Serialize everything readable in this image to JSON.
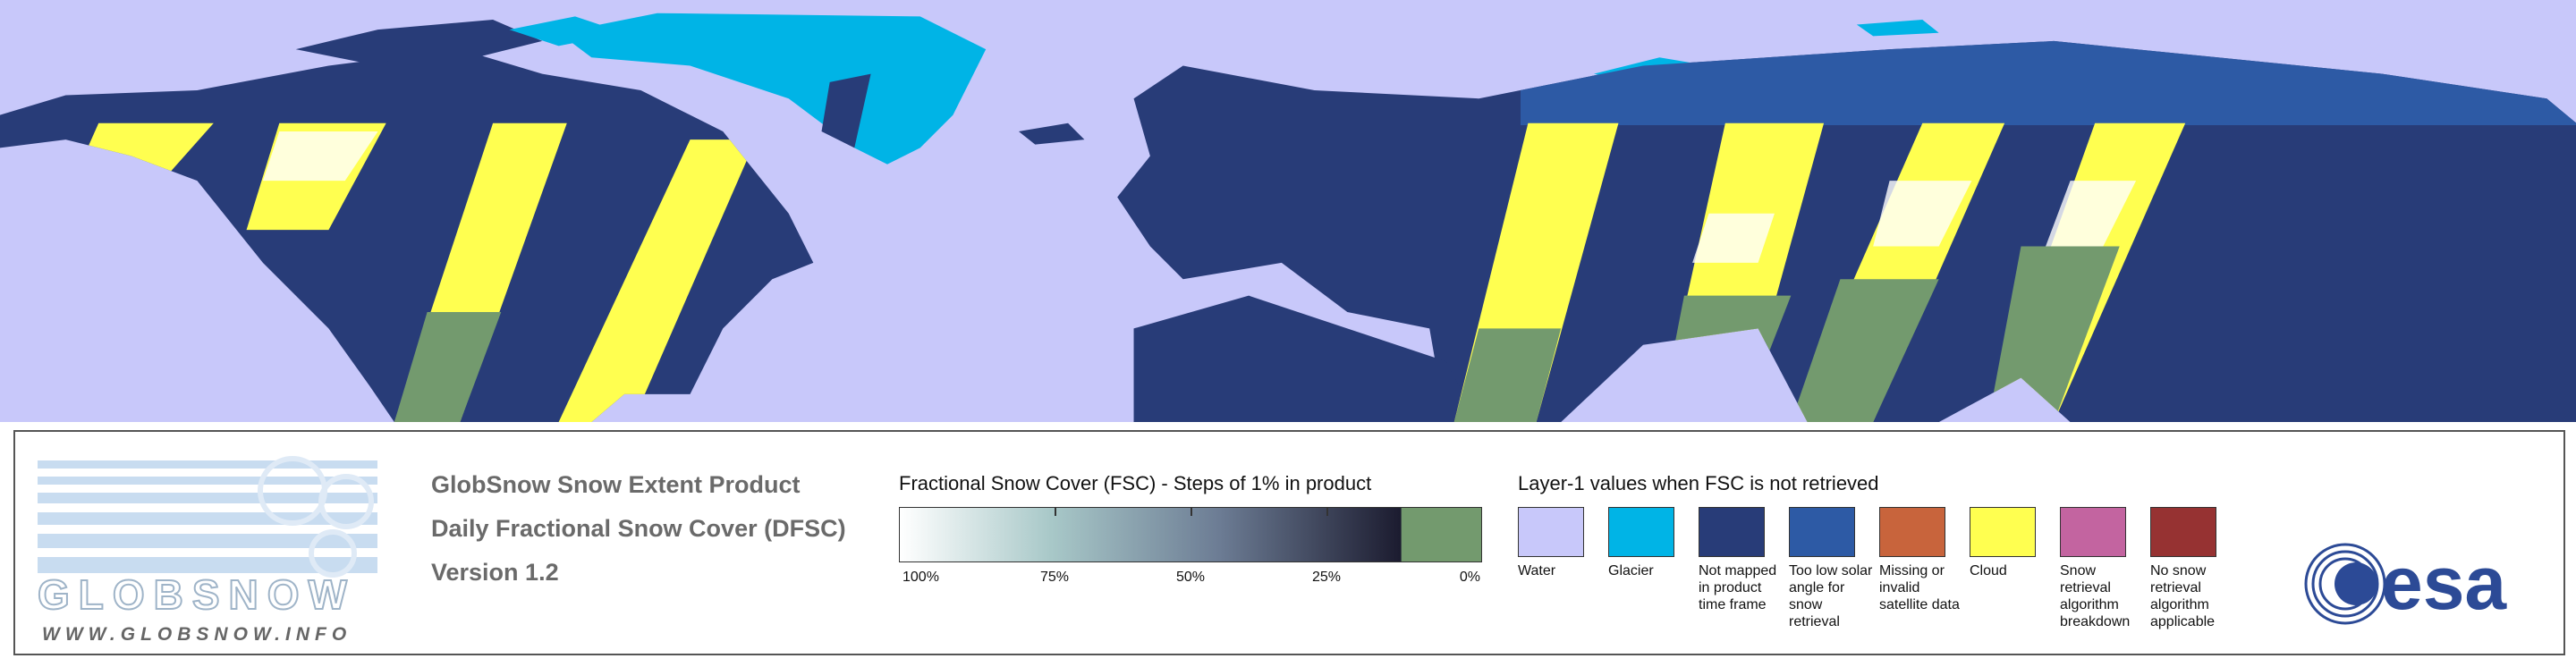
{
  "logo": {
    "name": "GLOBSNOW",
    "url": "WWW.GLOBSNOW.INFO"
  },
  "product": {
    "title": "GlobSnow Snow Extent Product",
    "subtitle": "Daily Fractional Snow Cover (DFSC)",
    "version": "Version 1.2"
  },
  "colorbar": {
    "title": "Fractional Snow Cover (FSC) - Steps of 1% in product",
    "ticks": [
      "100%",
      "75%",
      "50%",
      "25%",
      "0%"
    ]
  },
  "layer1": {
    "title": "Layer-1 values when FSC is not retrieved",
    "classes": [
      {
        "label": "Water",
        "color": "#c8c8fa"
      },
      {
        "label": "Glacier",
        "color": "#00b4e6"
      },
      {
        "label": "Not mapped in product time frame",
        "color": "#283c78"
      },
      {
        "label": "Too low solar angle for snow retrieval",
        "color": "#2d5aa5"
      },
      {
        "label": "Missing or invalid satellite data",
        "color": "#c8643c"
      },
      {
        "label": "Cloud",
        "color": "#ffff50"
      },
      {
        "label": "Snow retrieval algorithm breakdown",
        "color": "#c364a0"
      },
      {
        "label": "No snow retrieval algorithm applicable",
        "color": "#963232"
      }
    ]
  },
  "agency": "esa"
}
